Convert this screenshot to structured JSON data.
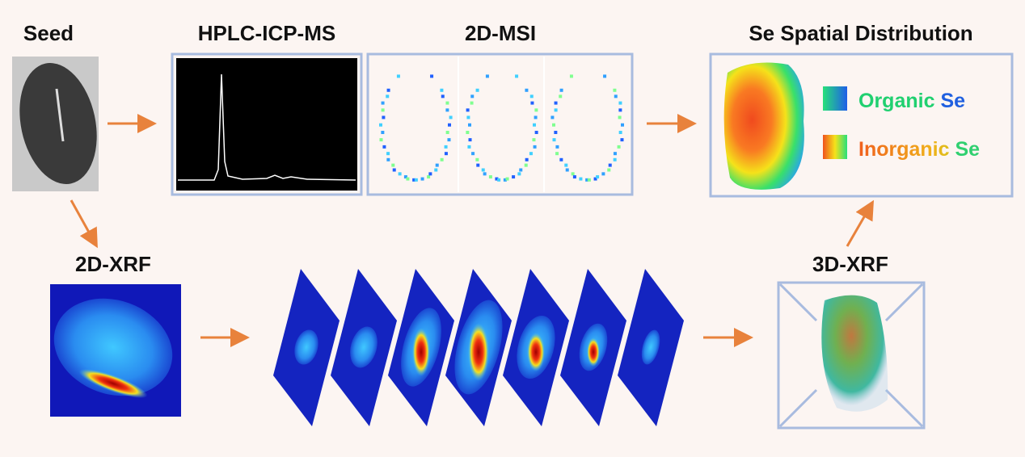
{
  "nodes": [
    {
      "label": "Seed"
    },
    {
      "label": "HPLC-ICP-MS"
    },
    {
      "label": "2D-MSI"
    },
    {
      "label": "Se Spatial Distribution"
    },
    {
      "label": "2D-XRF"
    },
    {
      "label": "3D-XRF"
    }
  ],
  "legend": [
    {
      "words": [
        "Organic",
        "Se"
      ]
    },
    {
      "words": [
        "Inorganic",
        "Se"
      ]
    }
  ]
}
